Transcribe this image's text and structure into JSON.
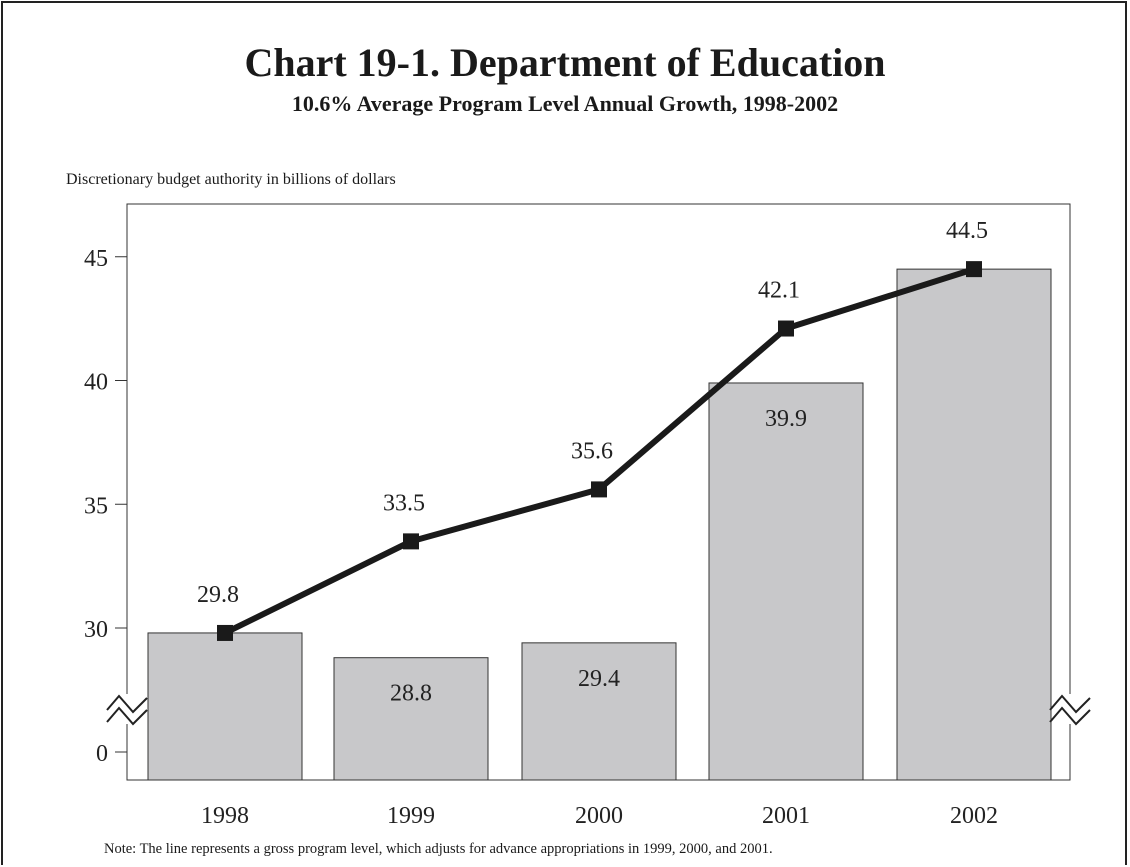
{
  "chart_data": {
    "type": "bar",
    "title": "Chart 19-1.  Department of Education",
    "subtitle": "10.6% Average Program Level Annual Growth, 1998-2002",
    "ylabel": "Discretionary budget authority in billions of dollars",
    "xlabel": "",
    "categories": [
      "1998",
      "1999",
      "2000",
      "2001",
      "2002"
    ],
    "y_ticks": [
      "0",
      "30",
      "35",
      "40",
      "45"
    ],
    "axis_break": "between 0 and 30",
    "ylim": [
      27,
      47
    ],
    "grid": false,
    "series": [
      {
        "type": "bar",
        "values": [
          29.8,
          28.8,
          29.4,
          39.9,
          44.5
        ],
        "value_labels": [
          "",
          "28.8",
          "29.4",
          "39.9",
          ""
        ],
        "color": "#c8c8ca"
      },
      {
        "type": "line",
        "values": [
          29.8,
          33.5,
          35.6,
          42.1,
          44.5
        ],
        "value_labels": [
          "29.8",
          "33.5",
          "35.6",
          "42.1",
          "44.5"
        ],
        "color": "#1a1a1a",
        "marker": "square"
      }
    ],
    "note": "Note:  The line represents a gross program level, which adjusts for advance appropriations in 1999, 2000, and 2001."
  }
}
